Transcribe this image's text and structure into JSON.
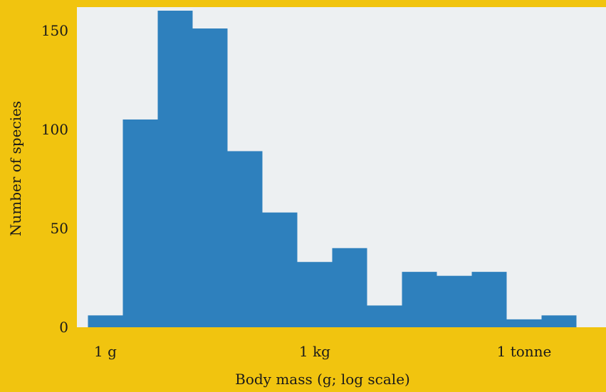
{
  "chart_data": {
    "type": "bar",
    "title": "",
    "xlabel": "Body mass (g; log scale)",
    "ylabel": "Number of species",
    "x_scale": "log",
    "x_range_log10_grams": [
      0,
      7
    ],
    "ylim": [
      0,
      162
    ],
    "grid": false,
    "legend": "none",
    "bin_edges_log10_grams": [
      -0.25,
      0.25,
      0.75,
      1.25,
      1.75,
      2.25,
      2.75,
      3.25,
      3.75,
      4.25,
      4.75,
      5.25,
      5.75,
      6.25,
      6.75
    ],
    "values": [
      6,
      105,
      160,
      151,
      89,
      58,
      33,
      40,
      11,
      28,
      26,
      28,
      4,
      6
    ],
    "x_ticks": [
      {
        "log10_grams": 0,
        "label": "1 g"
      },
      {
        "log10_grams": 3,
        "label": "1 kg"
      },
      {
        "log10_grams": 6,
        "label": "1 tonne"
      }
    ],
    "y_ticks": [
      0,
      50,
      100,
      150
    ],
    "colors": {
      "background": "#f1c40f",
      "plot_area": "#edf0f2",
      "bar": "#2e80bd"
    }
  }
}
